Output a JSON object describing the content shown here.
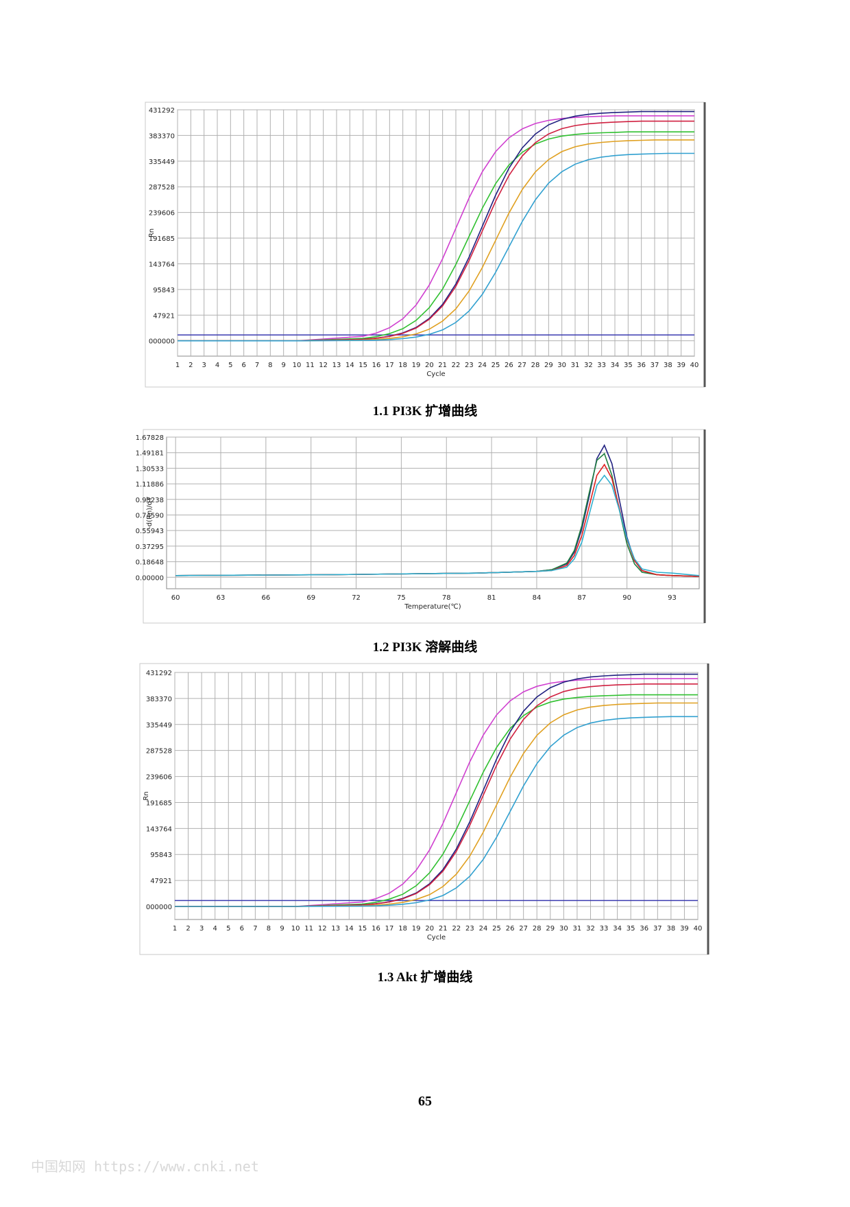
{
  "chart_data": [
    {
      "type": "line",
      "caption": "1.1 PI3K 扩增曲线",
      "ylabel": "Rn",
      "xlabel": "Cycle",
      "x": [
        1,
        10,
        15,
        16,
        17,
        18,
        19,
        20,
        21,
        22,
        23,
        24,
        25,
        26,
        27,
        28,
        29,
        30,
        31,
        32,
        33,
        34,
        35,
        36,
        37,
        38,
        39,
        40
      ],
      "xlim": [
        1,
        40
      ],
      "xticks": [
        1,
        2,
        3,
        4,
        5,
        6,
        7,
        8,
        9,
        10,
        11,
        12,
        13,
        14,
        15,
        16,
        17,
        18,
        19,
        20,
        21,
        22,
        23,
        24,
        25,
        26,
        27,
        28,
        29,
        30,
        31,
        32,
        33,
        34,
        35,
        36,
        37,
        38,
        39,
        40
      ],
      "ylim": [
        -28600,
        431292
      ],
      "yticks": [
        {
          "value": 0,
          "label": "000000"
        },
        47921,
        95843,
        143764,
        191685,
        239606,
        287528,
        335449,
        383370,
        431292
      ],
      "threshold": 11000,
      "threshold_color": "#3a3ab0",
      "grid": true,
      "series": [
        {
          "color": "#d040d0",
          "values": [
            0,
            0,
            8400,
            14500,
            24400,
            41200,
            66800,
            104200,
            153300,
            210000,
            266700,
            315800,
            353200,
            378800,
            395600,
            405700,
            411600,
            415000,
            417100,
            418300,
            419200,
            420000,
            420000,
            420000,
            420000,
            420000,
            420000,
            420000
          ]
        },
        {
          "color": "#30c030",
          "values": [
            0,
            0,
            4500,
            7800,
            13500,
            22600,
            38200,
            62000,
            96700,
            142400,
            195000,
            247700,
            293300,
            328000,
            351800,
            367400,
            376700,
            382200,
            385300,
            387300,
            388400,
            389200,
            390000,
            390000,
            390000,
            390000,
            390000,
            390000
          ]
        },
        {
          "color": "#202080",
          "values": [
            0,
            0,
            2900,
            5000,
            8600,
            14800,
            24800,
            41900,
            68100,
            106100,
            156200,
            214000,
            271800,
            321900,
            359900,
            386100,
            403200,
            413400,
            419400,
            422900,
            425000,
            426300,
            427100,
            428000,
            428000,
            428000,
            428000,
            428000
          ]
        },
        {
          "color": "#d02040",
          "values": [
            0,
            0,
            2700,
            4800,
            8200,
            14100,
            23800,
            40200,
            65200,
            101700,
            149700,
            205000,
            260400,
            308300,
            344800,
            369800,
            386200,
            396100,
            401800,
            405100,
            407100,
            408400,
            409200,
            410000,
            410000,
            410000,
            410000,
            410000
          ]
        },
        {
          "color": "#e0a020",
          "values": [
            0,
            0,
            1400,
            2500,
            4400,
            7500,
            12900,
            21800,
            36800,
            59600,
            93000,
            136900,
            187500,
            238100,
            282000,
            315400,
            338300,
            353300,
            362300,
            367500,
            370500,
            372400,
            373500,
            374300,
            375000,
            375000,
            375000,
            375000
          ]
        },
        {
          "color": "#30a0d0",
          "values": [
            0,
            0,
            800,
            1300,
            2300,
            4100,
            7000,
            12100,
            20300,
            34300,
            55700,
            86800,
            127800,
            175000,
            222300,
            263200,
            294400,
            315700,
            329700,
            338100,
            343000,
            345800,
            347600,
            348600,
            349300,
            350000,
            350000,
            350000
          ]
        }
      ]
    },
    {
      "type": "line",
      "caption": "1.2 PI3K 溶解曲线",
      "ylabel": "-d(Rn)/dT",
      "xlabel": "Temperature(℃)",
      "x": [
        60,
        70,
        80,
        84,
        85,
        86,
        86.5,
        87,
        87.5,
        88,
        88.5,
        89,
        89.5,
        90,
        90.5,
        91,
        92,
        93,
        94.8
      ],
      "xlim": [
        59.4,
        94.8
      ],
      "xticks": [
        60,
        63,
        66,
        69,
        72,
        75,
        78,
        81,
        84,
        87,
        90,
        93
      ],
      "ylim": [
        -0.1375,
        1.67828
      ],
      "yticks": [
        {
          "value": 0,
          "label": "0.00000"
        },
        0.18648,
        0.37295,
        0.55943,
        {
          "value": 0.7459,
          "label": "0.74590"
        },
        0.93238,
        1.11886,
        1.30533,
        1.49181,
        1.67828
      ],
      "grid": true,
      "series": [
        {
          "color": "#202080",
          "values": [
            0.02,
            0.03,
            0.05,
            0.07,
            0.09,
            0.16,
            0.3,
            0.58,
            0.98,
            1.42,
            1.58,
            1.36,
            0.92,
            0.48,
            0.2,
            0.08,
            0.03,
            0.02,
            0.01
          ]
        },
        {
          "color": "#208040",
          "values": [
            0.02,
            0.03,
            0.05,
            0.07,
            0.09,
            0.17,
            0.32,
            0.62,
            1.02,
            1.4,
            1.48,
            1.22,
            0.8,
            0.4,
            0.16,
            0.06,
            0.03,
            0.02,
            0.01
          ]
        },
        {
          "color": "#e02020",
          "values": [
            0.02,
            0.03,
            0.05,
            0.07,
            0.08,
            0.14,
            0.26,
            0.5,
            0.86,
            1.22,
            1.35,
            1.18,
            0.82,
            0.45,
            0.2,
            0.08,
            0.03,
            0.02,
            0.01
          ]
        },
        {
          "color": "#30b0d0",
          "values": [
            0.02,
            0.03,
            0.05,
            0.07,
            0.08,
            0.12,
            0.22,
            0.42,
            0.76,
            1.1,
            1.22,
            1.1,
            0.8,
            0.46,
            0.22,
            0.1,
            0.06,
            0.05,
            0.02
          ]
        }
      ]
    },
    {
      "type": "line",
      "caption": "1.3 Akt 扩增曲线",
      "ylabel": "Rn",
      "xlabel": "Cycle",
      "x": [
        1,
        10,
        15,
        16,
        17,
        18,
        19,
        20,
        21,
        22,
        23,
        24,
        25,
        26,
        27,
        28,
        29,
        30,
        31,
        32,
        33,
        34,
        35,
        36,
        37,
        38,
        39,
        40
      ],
      "xlim": [
        1,
        40
      ],
      "xticks": [
        1,
        2,
        3,
        4,
        5,
        6,
        7,
        8,
        9,
        10,
        11,
        12,
        13,
        14,
        15,
        16,
        17,
        18,
        19,
        20,
        21,
        22,
        23,
        24,
        25,
        26,
        27,
        28,
        29,
        30,
        31,
        32,
        33,
        34,
        35,
        36,
        37,
        38,
        39,
        40
      ],
      "ylim": [
        -24000,
        431292
      ],
      "yticks": [
        {
          "value": 0,
          "label": "000000"
        },
        47921,
        95843,
        143764,
        191685,
        239606,
        287528,
        335449,
        383370,
        431292
      ],
      "threshold": 11000,
      "threshold_color": "#3a3ab0",
      "grid": true,
      "series": [
        {
          "color": "#d040d0",
          "values": [
            0,
            0,
            8400,
            14500,
            24400,
            41200,
            66800,
            104200,
            153300,
            210000,
            266700,
            315800,
            353200,
            378800,
            395600,
            405700,
            411600,
            415000,
            417100,
            418300,
            419200,
            420000,
            420000,
            420000,
            420000,
            420000,
            420000,
            420000
          ]
        },
        {
          "color": "#30c030",
          "values": [
            0,
            0,
            4500,
            7800,
            13500,
            22600,
            38200,
            62000,
            96700,
            142400,
            195000,
            247700,
            293300,
            328000,
            351800,
            367400,
            376700,
            382200,
            385300,
            387300,
            388400,
            389200,
            390000,
            390000,
            390000,
            390000,
            390000,
            390000
          ]
        },
        {
          "color": "#202080",
          "values": [
            0,
            0,
            2900,
            5000,
            8600,
            14800,
            24800,
            41900,
            68100,
            106100,
            156200,
            214000,
            271800,
            321900,
            359900,
            386100,
            403200,
            413400,
            419400,
            422900,
            425000,
            426300,
            427100,
            428000,
            428000,
            428000,
            428000,
            428000
          ]
        },
        {
          "color": "#d02040",
          "values": [
            0,
            0,
            2700,
            4800,
            8200,
            14100,
            23800,
            40200,
            65200,
            101700,
            149700,
            205000,
            260400,
            308300,
            344800,
            369800,
            386200,
            396100,
            401800,
            405100,
            407100,
            408400,
            409200,
            410000,
            410000,
            410000,
            410000,
            410000
          ]
        },
        {
          "color": "#e0a020",
          "values": [
            0,
            0,
            1400,
            2500,
            4400,
            7500,
            12900,
            21800,
            36800,
            59600,
            93000,
            136900,
            187500,
            238100,
            282000,
            315400,
            338300,
            353300,
            362300,
            367500,
            370500,
            372400,
            373500,
            374300,
            375000,
            375000,
            375000,
            375000
          ]
        },
        {
          "color": "#30a0d0",
          "values": [
            0,
            0,
            800,
            1300,
            2300,
            4100,
            7000,
            12100,
            20300,
            34300,
            55700,
            86800,
            127800,
            175000,
            222300,
            263200,
            294400,
            315700,
            329700,
            338100,
            343000,
            345800,
            347600,
            348600,
            349300,
            350000,
            350000,
            350000
          ]
        }
      ]
    }
  ],
  "page_number": "65",
  "watermark": "中国知网  https://www.cnki.net"
}
